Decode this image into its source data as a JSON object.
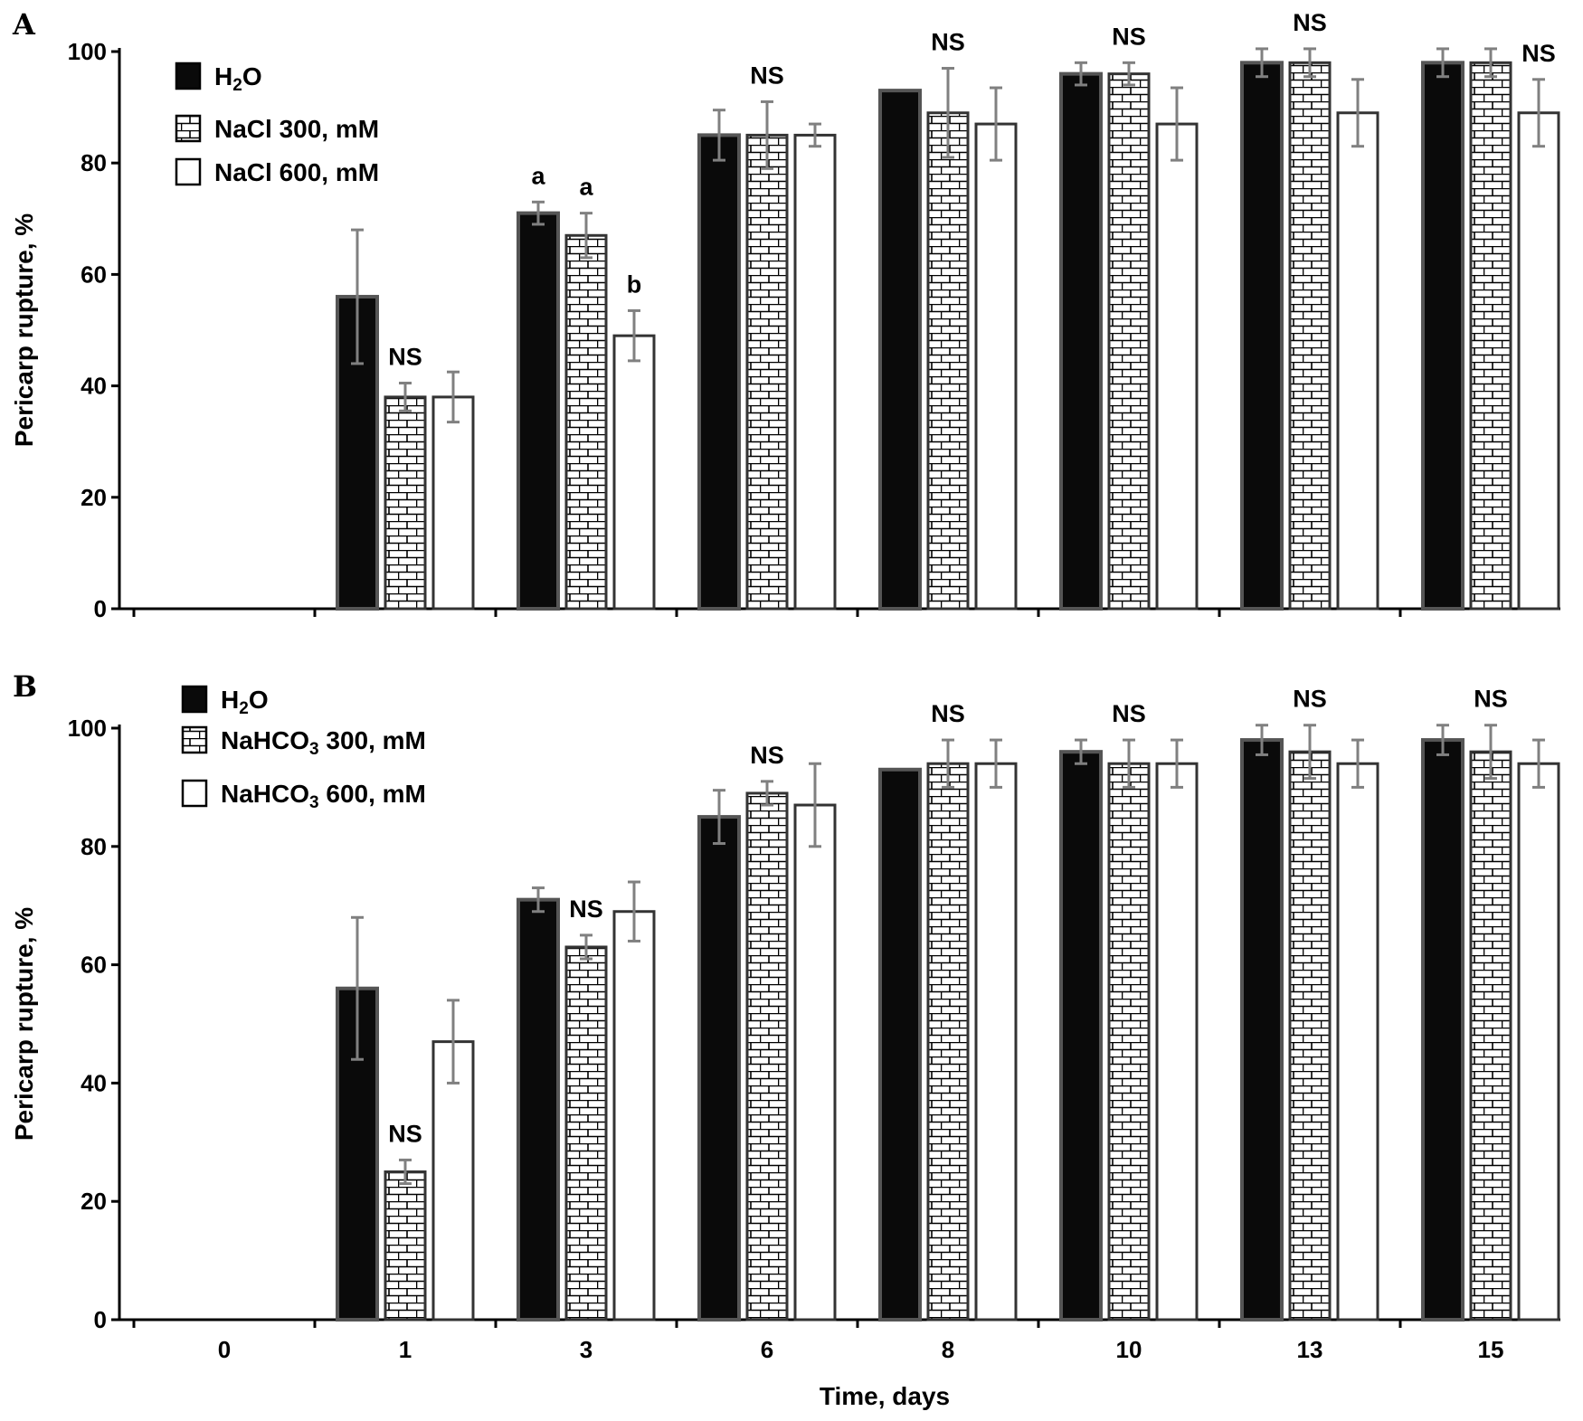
{
  "chart_data": [
    {
      "panel": "A",
      "type": "bar",
      "ylabel": "Pericarp rupture, %",
      "xlabel": "",
      "ylim": [
        0,
        100
      ],
      "yticks": [
        "0",
        "20",
        "40",
        "60",
        "80",
        "100"
      ],
      "categories": [
        "0",
        "1",
        "3",
        "6",
        "8",
        "10",
        "13",
        "15"
      ],
      "series": [
        {
          "name": "H2O",
          "label_main": "H",
          "label_sub": "2",
          "label_tail": "O",
          "pattern": "solid",
          "values": [
            null,
            56,
            71,
            85,
            93,
            96,
            98,
            98
          ],
          "errors": [
            null,
            12,
            2,
            4.5,
            null,
            2,
            2.5,
            2.5
          ]
        },
        {
          "name": "NaCl 300, mM",
          "label_main": "NaCl 300, mM",
          "label_sub": "",
          "label_tail": "",
          "pattern": "brick",
          "values": [
            null,
            38,
            67,
            85,
            89,
            96,
            98,
            98
          ],
          "errors": [
            null,
            2.5,
            4,
            6,
            8,
            2,
            2.5,
            2.5
          ]
        },
        {
          "name": "NaCl 600, mM",
          "label_main": "NaCl 600, mM",
          "label_sub": "",
          "label_tail": "",
          "pattern": "white",
          "values": [
            null,
            38,
            49,
            85,
            87,
            87,
            89,
            89
          ],
          "errors": [
            null,
            4.5,
            4.5,
            2,
            6.5,
            6.5,
            6,
            6
          ]
        }
      ],
      "annotations": [
        {
          "group": 1,
          "series": 1,
          "text": "NS"
        },
        {
          "group": 2,
          "series": 0,
          "text": "a"
        },
        {
          "group": 2,
          "series": 1,
          "text": "a"
        },
        {
          "group": 2,
          "series": 2,
          "text": "b"
        },
        {
          "group": 3,
          "series": 1,
          "text": "NS"
        },
        {
          "group": 4,
          "series": 1,
          "text": "NS"
        },
        {
          "group": 5,
          "series": 1,
          "text": "NS"
        },
        {
          "group": 6,
          "series": 1,
          "text": "NS"
        },
        {
          "group": 7,
          "series": 2,
          "text": "NS"
        }
      ]
    },
    {
      "panel": "B",
      "type": "bar",
      "ylabel": "Pericarp rupture, %",
      "xlabel": "Time, days",
      "ylim": [
        0,
        100
      ],
      "yticks": [
        "0",
        "20",
        "40",
        "60",
        "80",
        "100"
      ],
      "categories": [
        "0",
        "1",
        "3",
        "6",
        "8",
        "10",
        "13",
        "15"
      ],
      "series": [
        {
          "name": "H2O",
          "label_main": "H",
          "label_sub": "2",
          "label_tail": "O",
          "pattern": "solid",
          "values": [
            null,
            56,
            71,
            85,
            93,
            96,
            98,
            98
          ],
          "errors": [
            null,
            12,
            2,
            4.5,
            null,
            2,
            2.5,
            2.5
          ]
        },
        {
          "name": "NaHCO3 300, mM",
          "label_main": "NaHCO",
          "label_sub": "3",
          "label_tail": " 300, mM",
          "pattern": "brick",
          "values": [
            null,
            25,
            63,
            89,
            94,
            94,
            96,
            96
          ],
          "errors": [
            null,
            2,
            2,
            2,
            4,
            4,
            4.5,
            4.5
          ]
        },
        {
          "name": "NaHCO3 600, mM",
          "label_main": "NaHCO",
          "label_sub": "3",
          "label_tail": " 600, mM",
          "pattern": "white",
          "values": [
            null,
            47,
            69,
            87,
            94,
            94,
            94,
            94
          ],
          "errors": [
            null,
            7,
            5,
            7,
            4,
            4,
            4,
            4
          ]
        }
      ],
      "annotations": [
        {
          "group": 1,
          "series": 1,
          "text": "NS"
        },
        {
          "group": 2,
          "series": 1,
          "text": "NS"
        },
        {
          "group": 3,
          "series": 1,
          "text": "NS"
        },
        {
          "group": 4,
          "series": 1,
          "text": "NS"
        },
        {
          "group": 5,
          "series": 1,
          "text": "NS"
        },
        {
          "group": 6,
          "series": 1,
          "text": "NS"
        },
        {
          "group": 7,
          "series": 1,
          "text": "NS"
        }
      ]
    }
  ],
  "colors": {
    "solid": "#0a0a0a",
    "outline": "#333333",
    "error_bar": "#808080",
    "axis": "#000000",
    "background": "#ffffff"
  }
}
